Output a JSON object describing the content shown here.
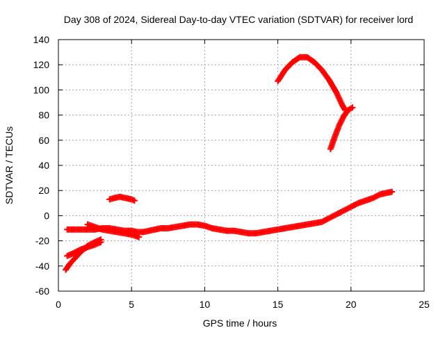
{
  "chart_data": {
    "type": "scatter",
    "title": "Day 308 of 2024, Sidereal Day-to-day VTEC variation (SDTVAR) for receiver lord",
    "xlabel": "GPS time / hours",
    "ylabel": "SDTVAR / TECUs",
    "xlim": [
      0,
      25
    ],
    "ylim": [
      -60,
      140
    ],
    "xticks": [
      0,
      5,
      10,
      15,
      20,
      25
    ],
    "yticks": [
      -60,
      -40,
      -20,
      0,
      20,
      40,
      60,
      80,
      100,
      120,
      140
    ],
    "grid": true,
    "marker": "+",
    "series": [
      {
        "color": "#ff0000",
        "segments": [
          [
            [
              0.6,
              -11
            ],
            [
              1.0,
              -11
            ],
            [
              1.5,
              -11
            ],
            [
              2.0,
              -11
            ],
            [
              2.5,
              -11
            ],
            [
              3.0,
              -10
            ],
            [
              3.5,
              -10
            ],
            [
              4.0,
              -11
            ],
            [
              4.5,
              -12
            ],
            [
              5.0,
              -12
            ],
            [
              5.4,
              -13
            ],
            [
              5.8,
              -13
            ],
            [
              6.2,
              -12
            ],
            [
              6.6,
              -11
            ],
            [
              7.0,
              -10
            ],
            [
              7.5,
              -10
            ],
            [
              8.0,
              -9
            ],
            [
              8.5,
              -8
            ],
            [
              9.0,
              -7
            ],
            [
              9.5,
              -7
            ],
            [
              10.0,
              -8
            ],
            [
              10.5,
              -10
            ],
            [
              11.0,
              -11
            ],
            [
              11.5,
              -12
            ],
            [
              12.0,
              -12
            ],
            [
              12.5,
              -13
            ],
            [
              13.0,
              -14
            ],
            [
              13.5,
              -14
            ],
            [
              14.0,
              -13
            ],
            [
              14.5,
              -12
            ],
            [
              15.0,
              -11
            ],
            [
              15.5,
              -10
            ],
            [
              16.0,
              -9
            ],
            [
              16.5,
              -8
            ],
            [
              17.0,
              -7
            ],
            [
              17.5,
              -6
            ],
            [
              18.0,
              -5
            ],
            [
              18.5,
              -2
            ],
            [
              19.0,
              1
            ],
            [
              19.5,
              4
            ],
            [
              20.0,
              7
            ],
            [
              20.5,
              10
            ],
            [
              21.0,
              12
            ],
            [
              21.5,
              14
            ],
            [
              22.0,
              17
            ],
            [
              22.4,
              18
            ],
            [
              22.8,
              19
            ]
          ],
          [
            [
              2.0,
              -7
            ],
            [
              2.5,
              -9
            ],
            [
              3.0,
              -11
            ],
            [
              3.5,
              -12
            ],
            [
              4.0,
              -13
            ],
            [
              4.5,
              -14
            ],
            [
              5.0,
              -15
            ],
            [
              5.5,
              -17
            ]
          ],
          [
            [
              0.5,
              -43
            ],
            [
              0.8,
              -38
            ],
            [
              1.2,
              -33
            ],
            [
              1.6,
              -28
            ],
            [
              2.0,
              -24
            ],
            [
              2.5,
              -21
            ],
            [
              2.9,
              -19
            ]
          ],
          [
            [
              0.6,
              -32
            ],
            [
              1.0,
              -30
            ],
            [
              1.5,
              -27
            ],
            [
              2.0,
              -25
            ],
            [
              2.5,
              -23
            ],
            [
              2.9,
              -21
            ]
          ],
          [
            [
              3.5,
              13
            ],
            [
              3.8,
              14
            ],
            [
              4.2,
              15
            ],
            [
              4.6,
              14
            ],
            [
              5.0,
              13
            ],
            [
              5.2,
              12
            ]
          ],
          [
            [
              15.0,
              107
            ],
            [
              15.5,
              116
            ],
            [
              16.0,
              122
            ],
            [
              16.5,
              126
            ],
            [
              17.0,
              126
            ],
            [
              17.5,
              122
            ],
            [
              18.0,
              116
            ],
            [
              18.5,
              108
            ],
            [
              19.0,
              98
            ],
            [
              19.4,
              88
            ],
            [
              19.6,
              84
            ]
          ],
          [
            [
              18.6,
              53
            ],
            [
              18.9,
              63
            ],
            [
              19.2,
              72
            ],
            [
              19.5,
              79
            ],
            [
              19.8,
              84
            ],
            [
              20.1,
              86
            ]
          ]
        ]
      }
    ]
  }
}
